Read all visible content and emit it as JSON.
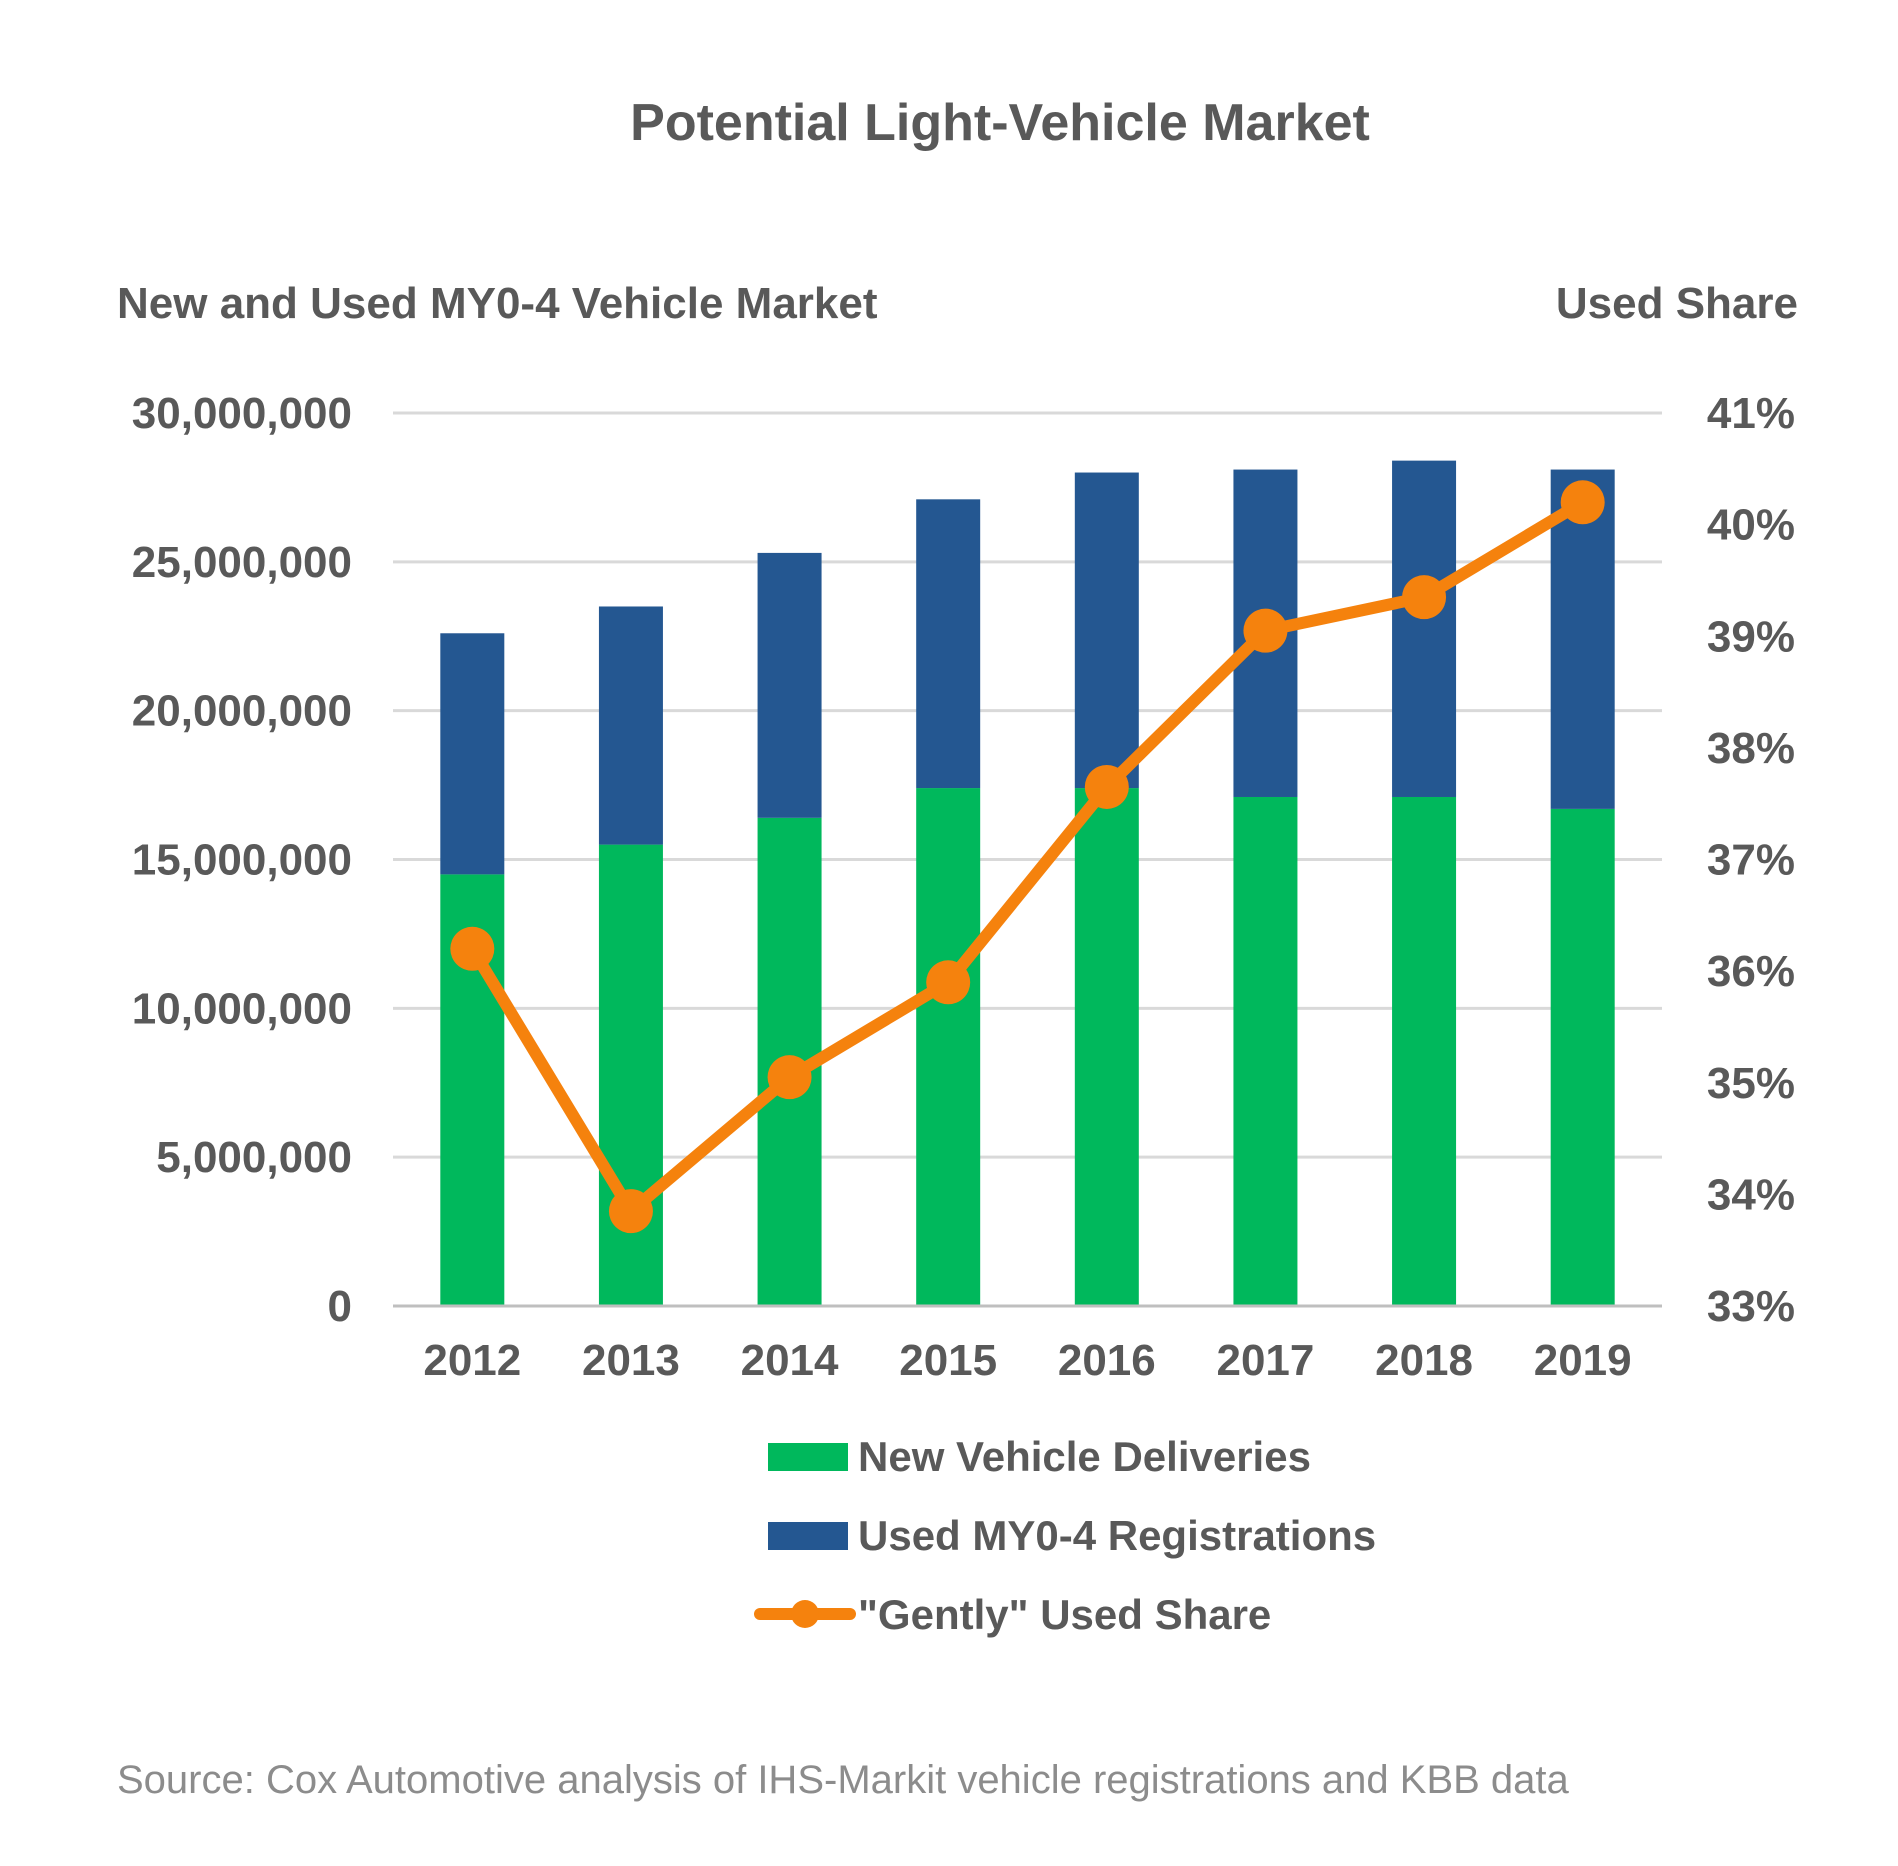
{
  "chart_data": {
    "type": "bar",
    "stacked": true,
    "title": "Potential Light-Vehicle Market",
    "y_left_label": "New and Used MY0-4 Vehicle Market",
    "y_right_label": "Used Share",
    "categories": [
      "2012",
      "2013",
      "2014",
      "2015",
      "2016",
      "2017",
      "2018",
      "2019"
    ],
    "y_left": {
      "min": 0,
      "max": 30000000,
      "ticks": [
        0,
        5000000,
        10000000,
        15000000,
        20000000,
        25000000,
        30000000
      ],
      "tick_labels": [
        "0",
        "5,000,000",
        "10,000,000",
        "15,000,000",
        "20,000,000",
        "25,000,000",
        "30,000,000"
      ]
    },
    "y_right": {
      "min": 33,
      "max": 41,
      "ticks": [
        33,
        34,
        35,
        36,
        37,
        38,
        39,
        40,
        41
      ],
      "tick_labels": [
        "33%",
        "34%",
        "35%",
        "36%",
        "37%",
        "38%",
        "39%",
        "40%",
        "41%"
      ]
    },
    "series": [
      {
        "name": "New Vehicle Deliveries",
        "type": "bar",
        "axis": "left",
        "color": "#00b85c",
        "values": [
          14500000,
          15500000,
          16400000,
          17400000,
          17400000,
          17100000,
          17100000,
          16700000
        ]
      },
      {
        "name": "Used MY0-4 Registrations",
        "type": "bar",
        "axis": "left",
        "color": "#245791",
        "values": [
          8100000,
          8000000,
          8900000,
          9700000,
          10600000,
          11000000,
          11300000,
          11400000
        ]
      },
      {
        "name": "\"Gently\" Used Share",
        "type": "line",
        "axis": "right",
        "color": "#f5820d",
        "values": [
          36.2,
          33.85,
          35.05,
          35.9,
          37.65,
          39.05,
          39.35,
          40.2
        ]
      }
    ],
    "grid": true,
    "legend_position": "bottom",
    "source": "Source:  Cox Automotive analysis of IHS-Markit vehicle registrations and KBB data"
  }
}
